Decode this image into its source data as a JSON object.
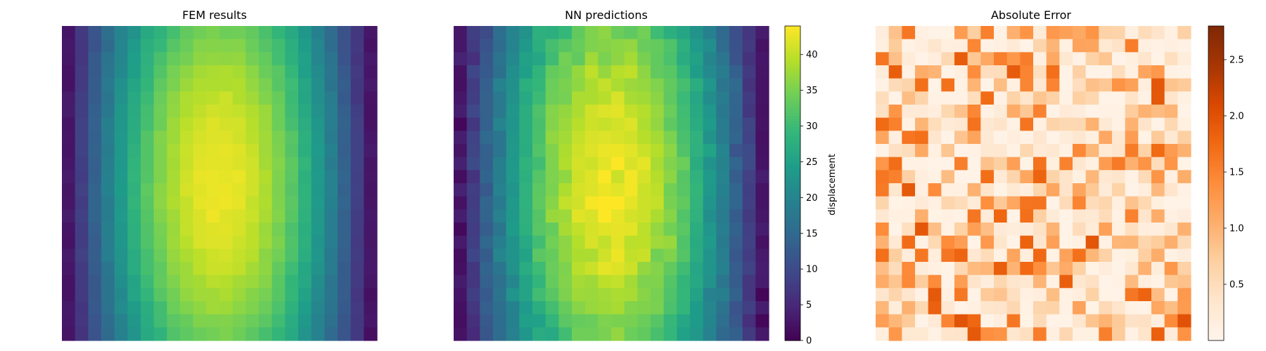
{
  "chart_data": [
    {
      "type": "heatmap",
      "title": "FEM results",
      "grid": [
        24,
        24
      ],
      "colormap": "viridis",
      "clim": [
        0,
        44
      ],
      "axes": "off"
    },
    {
      "type": "heatmap",
      "title": "NN predictions",
      "grid": [
        24,
        24
      ],
      "colormap": "viridis",
      "clim": [
        0,
        44
      ],
      "axes": "off",
      "colorbar": {
        "label": "displacement",
        "ticks": [
          0,
          5,
          10,
          15,
          20,
          25,
          30,
          35,
          40
        ],
        "tick_labels": [
          "0",
          "5",
          "10",
          "15",
          "20",
          "25",
          "30",
          "35",
          "40"
        ]
      }
    },
    {
      "type": "heatmap",
      "title": "Absolute Error",
      "grid": [
        24,
        24
      ],
      "colormap": "oranges",
      "clim": [
        0,
        2.8
      ],
      "axes": "off",
      "colorbar": {
        "label": "",
        "ticks": [
          0.5,
          1.0,
          1.5,
          2.0,
          2.5
        ],
        "tick_labels": [
          "0.5",
          "1.0",
          "1.5",
          "2.0",
          "2.5"
        ]
      }
    }
  ]
}
